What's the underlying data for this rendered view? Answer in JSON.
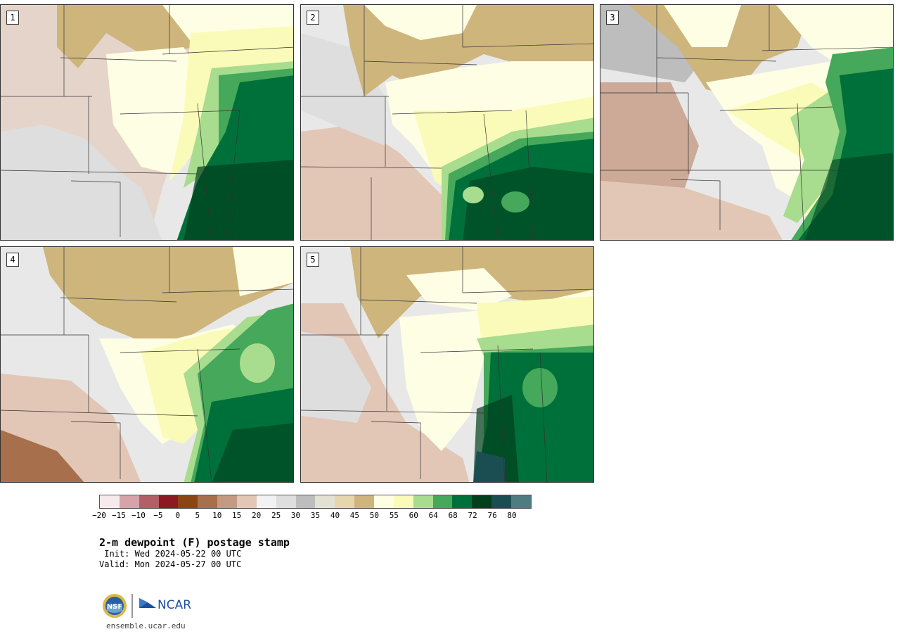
{
  "panels": [
    {
      "label": "1"
    },
    {
      "label": "2"
    },
    {
      "label": "3"
    },
    {
      "label": "4"
    },
    {
      "label": "5"
    }
  ],
  "colorbar": {
    "colors": [
      "#f6eaec",
      "#d6a3aa",
      "#b26066",
      "#8b1a22",
      "#8b4513",
      "#a86f4c",
      "#c49a82",
      "#e2c6b6",
      "#f2f2f2",
      "#dedede",
      "#bdbdbd",
      "#e3e1d4",
      "#e6d6ac",
      "#cdb57c",
      "#fefee4",
      "#fafbb8",
      "#a8dc8e",
      "#45a85a",
      "#00703a",
      "#00401d",
      "#1b4e52",
      "#4e7c80"
    ],
    "ticks": [
      "−20",
      "−15",
      "−10",
      "−5",
      "0",
      "5",
      "10",
      "15",
      "20",
      "25",
      "30",
      "35",
      "40",
      "45",
      "50",
      "55",
      "60",
      "64",
      "68",
      "72",
      "76",
      "80"
    ]
  },
  "title": "2-m dewpoint (F) postage stamp",
  "init": " Init: Wed 2024-05-22 00 UTC",
  "valid": "Valid: Mon 2024-05-27 00 UTC",
  "logos": {
    "left": "NSF",
    "right": "NCAR"
  },
  "site": "ensemble.ucar.edu"
}
